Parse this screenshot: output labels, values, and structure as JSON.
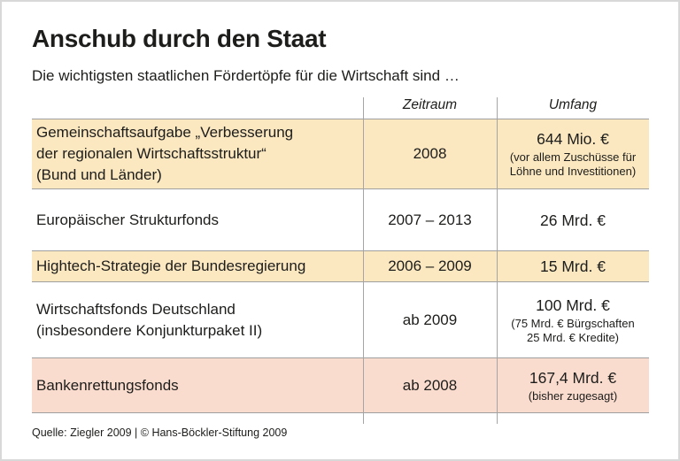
{
  "page": {
    "title": "Anschub durch den Staat",
    "subtitle": "Die wichtigsten staatlichen Fördertöpfe für die Wirtschaft sind …",
    "source": "Quelle: Ziegler 2009 | © Hans-Böckler-Stiftung 2009"
  },
  "table": {
    "columns": [
      "",
      "Zeitraum",
      "Umfang"
    ],
    "rows": [
      {
        "program": "Gemeinschaftsaufgabe „Verbesserung\nder regionalen Wirtschaftsstruktur“\n(Bund und Länder)",
        "zeitraum": "2008",
        "umfang": "644 Mio. €",
        "umfang_note": "(vor allem Zuschüsse für\nLöhne und Investitionen)",
        "highlight": "cream"
      },
      {
        "program": "Europäischer Strukturfonds",
        "zeitraum": "2007 – 2013",
        "umfang": "26 Mrd. €",
        "highlight": "none"
      },
      {
        "program": "Hightech-Strategie der Bundesregierung",
        "zeitraum": "2006 – 2009",
        "umfang": "15 Mrd. €",
        "highlight": "cream"
      },
      {
        "program": "Wirtschaftsfonds Deutschland\n(insbesondere Konjunkturpaket II)",
        "zeitraum": "ab 2009",
        "umfang": "100 Mrd. €",
        "umfang_note": "(75 Mrd. € Bürgschaften\n25 Mrd. € Kredite)",
        "highlight": "none"
      },
      {
        "program": "Bankenrettungsfonds",
        "zeitraum": "ab 2008",
        "umfang": "167,4 Mrd. €",
        "umfang_note": "(bisher zugesagt)",
        "highlight": "pink"
      }
    ]
  },
  "colors": {
    "row_cream": "#fbe7c0",
    "row_pink": "#fadcce",
    "grid_line": "#9f9f9f",
    "text": "#1d1d1b",
    "frame_border": "#d8d8d8"
  },
  "chart_data": {
    "type": "table",
    "title": "Anschub durch den Staat",
    "subtitle": "Die wichtigsten staatlichen Fördertöpfe für die Wirtschaft sind …",
    "columns": [
      "",
      "Zeitraum",
      "Umfang"
    ],
    "rows": [
      [
        "Gemeinschaftsaufgabe „Verbesserung der regionalen Wirtschaftsstruktur“ (Bund und Länder)",
        "2008",
        "644 Mio. € (vor allem Zuschüsse für Löhne und Investitionen)"
      ],
      [
        "Europäischer Strukturfonds",
        "2007 – 2013",
        "26 Mrd. €"
      ],
      [
        "Hightech-Strategie der Bundesregierung",
        "2006 – 2009",
        "15 Mrd. €"
      ],
      [
        "Wirtschaftsfonds Deutschland (insbesondere Konjunkturpaket II)",
        "ab 2009",
        "100 Mrd. € (75 Mrd. € Bürgschaften 25 Mrd. € Kredite)"
      ],
      [
        "Bankenrettungsfonds",
        "ab 2008",
        "167,4 Mrd. € (bisher zugesagt)"
      ]
    ],
    "source": "Quelle: Ziegler 2009 | © Hans-Böckler-Stiftung 2009"
  }
}
